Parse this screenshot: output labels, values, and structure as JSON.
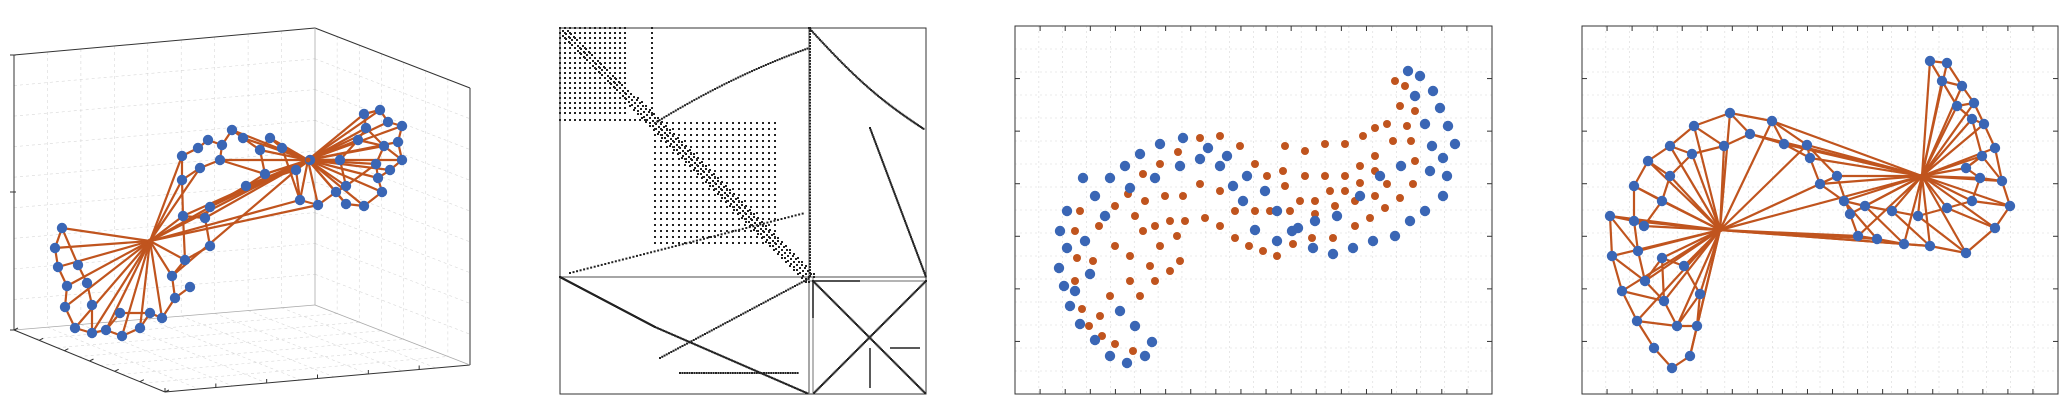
{
  "figure": {
    "panels": [
      {
        "id": "p1",
        "kind": "3d-graph-plot"
      },
      {
        "id": "p2",
        "kind": "sparsity-pattern"
      },
      {
        "id": "p3",
        "kind": "point-cloud"
      },
      {
        "id": "p4",
        "kind": "2d-graph-plot"
      }
    ]
  },
  "colors": {
    "node": "#3a66b5",
    "edge": "#c0541e",
    "red_point": "#c0541e",
    "axis": "#333333",
    "grid": "#d8d8d8",
    "sparse_dot": "#222222"
  }
}
